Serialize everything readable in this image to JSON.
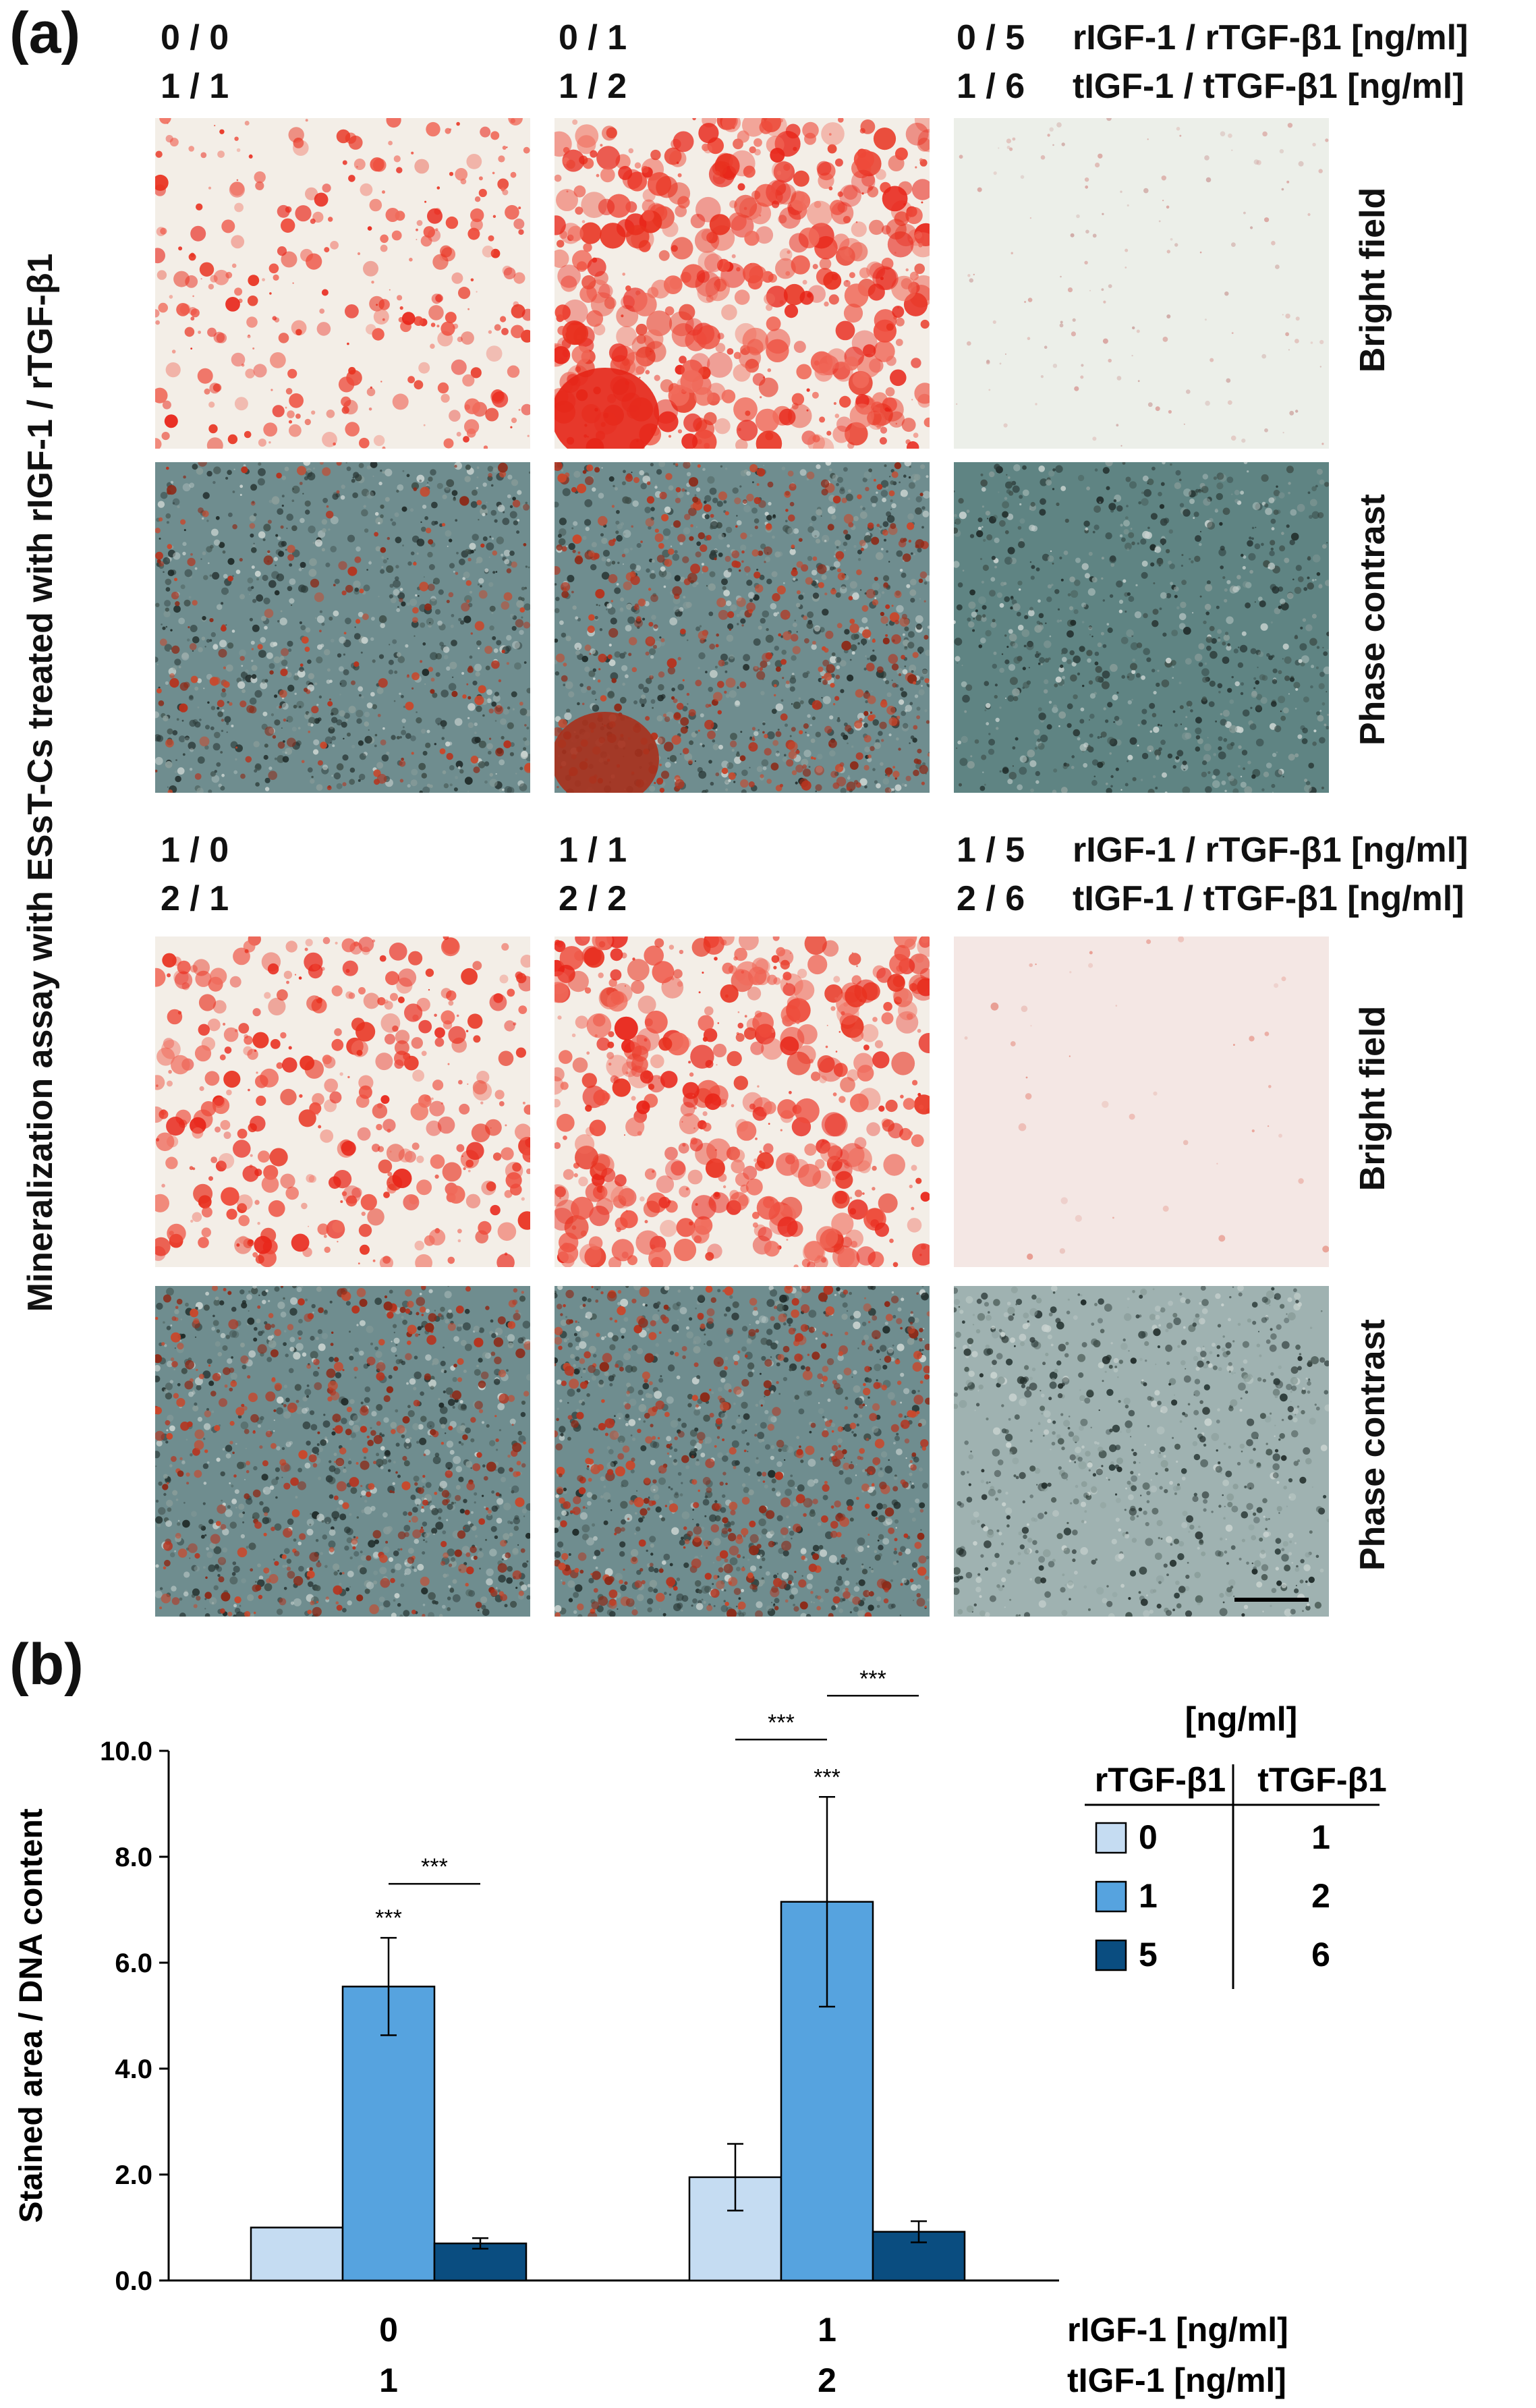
{
  "panel_a": {
    "letter": "(a)",
    "side_title": "Mineralization assay with ESsT-Cs treated with rIGF-1 / rTGF-β1",
    "row_labels": {
      "bright": "Bright field",
      "phase": "Phase contrast"
    },
    "rows": [
      {
        "conditions": [
          {
            "r": "0 / 0",
            "t": "1 / 1"
          },
          {
            "r": "0 / 1",
            "t": "1 / 2"
          },
          {
            "r": "0 / 5",
            "t": "1 / 6"
          }
        ],
        "r_label": "rIGF-1 / rTGF-β1 [ng/ml]",
        "t_label": "tIGF-1 / tTGF-β1 [ng/ml]"
      },
      {
        "conditions": [
          {
            "r": "1 / 0",
            "t": "2 / 1"
          },
          {
            "r": "1 / 1",
            "t": "2 / 2"
          },
          {
            "r": "1 / 5",
            "t": "2 / 6"
          }
        ],
        "r_label": "rIGF-1 / rTGF-β1 [ng/ml]",
        "t_label": "tIGF-1 / tTGF-β1 [ng/ml]"
      }
    ]
  },
  "panel_b": {
    "letter": "(b)"
  },
  "chart_data": {
    "type": "bar",
    "ylabel": "Stained area / DNA content",
    "ylim": [
      0,
      10
    ],
    "yticks": [
      "0.0",
      "2.0",
      "4.0",
      "6.0",
      "8.0",
      "10.0"
    ],
    "categories": [
      {
        "r": "0",
        "t": "1"
      },
      {
        "r": "1",
        "t": "2"
      }
    ],
    "x_r_label": "rIGF-1 [ng/ml]",
    "x_t_label": "tIGF-1 [ng/ml]",
    "series": [
      {
        "name": "0",
        "t_name": "1",
        "color": "#c5dcf2",
        "values": [
          1.0,
          1.95
        ],
        "errors": [
          0,
          0.63
        ]
      },
      {
        "name": "1",
        "t_name": "2",
        "color": "#56a3df",
        "values": [
          5.55,
          7.15
        ],
        "errors": [
          0.92,
          1.98
        ]
      },
      {
        "name": "5",
        "t_name": "6",
        "color": "#0a4d80",
        "values": [
          0.7,
          0.92
        ],
        "errors": [
          0.1,
          0.2
        ]
      }
    ],
    "significance": [
      {
        "text": "***",
        "category": 0,
        "series": 1,
        "kind": "above"
      },
      {
        "text": "***",
        "category": 0,
        "between": [
          1,
          2
        ],
        "kind": "bracket"
      },
      {
        "text": "***",
        "category": 1,
        "series": 1,
        "kind": "above"
      },
      {
        "text": "***",
        "category": 1,
        "between": [
          0,
          1
        ],
        "kind": "bracket"
      },
      {
        "text": "***",
        "category": 1,
        "between": [
          1,
          2
        ],
        "kind": "bracket"
      }
    ],
    "legend": {
      "unit": "[ng/ml]",
      "col_r": "rTGF-β1",
      "col_t": "tTGF-β1"
    }
  }
}
